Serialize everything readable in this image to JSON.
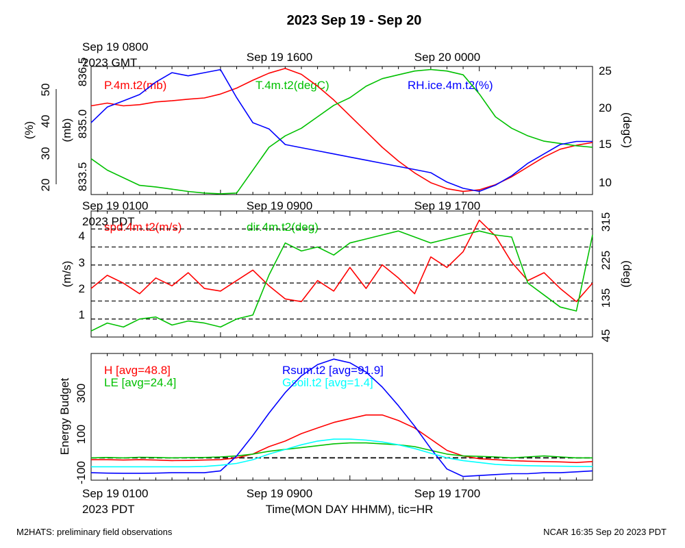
{
  "figure": {
    "title": "2023 Sep 19 - Sep 20",
    "footer_left": "M2HATS: preliminary field observations",
    "footer_right": "NCAR 16:35 Sep 20 2023 PDT",
    "xlabel": "Time(MON DAY HHMM), tic=HR",
    "gmt_ticks": [
      "Sep 19 0800",
      "Sep 19 1600",
      "Sep 20 0000"
    ],
    "gmt_zone": "2023 GMT",
    "pdt_ticks": [
      "Sep 19 0100",
      "Sep 19 0900",
      "Sep 19 1700"
    ],
    "pdt_zone": "2023 PDT"
  },
  "colors": {
    "red": "#ff0000",
    "green": "#00c000",
    "blue": "#0000ff",
    "cyan": "#00ffff",
    "black": "#000000"
  },
  "chart_data": [
    {
      "type": "line",
      "panel": "top",
      "x_axis": "hours since Sep 19 0100 PDT",
      "xlim": [
        0,
        31
      ],
      "axes": [
        {
          "id": "pct",
          "label": "(%)",
          "ticks": [
            "20",
            "30",
            "40",
            "50"
          ],
          "ylim": [
            17,
            58
          ]
        },
        {
          "id": "mb",
          "label": "(mb)",
          "ticks": [
            "833.5",
            "835.0",
            "836.5"
          ],
          "ylim": [
            833.3,
            836.55
          ]
        },
        {
          "id": "degC",
          "label": "(degC)",
          "ticks": [
            "10",
            "15",
            "20",
            "25"
          ],
          "ylim": [
            8.8,
            25.6
          ]
        }
      ],
      "series": [
        {
          "name": "P.4m.t2(mb)",
          "color": "red",
          "axis": "mb",
          "x": [
            0,
            1,
            2,
            3,
            4,
            5,
            6,
            7,
            8,
            9,
            10,
            11,
            12,
            13,
            14,
            15,
            16,
            17,
            18,
            19,
            20,
            21,
            22,
            23,
            24,
            25,
            26,
            27,
            28,
            29,
            30,
            31
          ],
          "y": [
            835.55,
            835.62,
            835.55,
            835.58,
            835.65,
            835.68,
            835.72,
            835.75,
            835.85,
            836.0,
            836.2,
            836.38,
            836.5,
            836.35,
            836.05,
            835.7,
            835.3,
            834.9,
            834.5,
            834.15,
            833.85,
            833.6,
            833.45,
            833.38,
            833.42,
            833.55,
            833.75,
            834.0,
            834.25,
            834.45,
            834.55,
            834.62
          ]
        },
        {
          "name": "T.4m.t2(degC)",
          "color": "green",
          "axis": "degC",
          "x": [
            0,
            1,
            2,
            3,
            4,
            5,
            6,
            7,
            8,
            9,
            10,
            11,
            12,
            13,
            14,
            15,
            16,
            17,
            18,
            19,
            20,
            21,
            22,
            23,
            24,
            25,
            26,
            27,
            28,
            29,
            30,
            31
          ],
          "y": [
            13.5,
            12.0,
            11.0,
            10.0,
            9.8,
            9.5,
            9.2,
            9.0,
            8.9,
            9.0,
            12.0,
            15.0,
            16.5,
            17.5,
            19.0,
            20.5,
            21.5,
            23.0,
            24.0,
            24.5,
            25.0,
            25.2,
            25.0,
            24.5,
            22.0,
            19.0,
            17.5,
            16.5,
            15.8,
            15.5,
            15.2,
            15.0
          ]
        },
        {
          "name": "RH.ice.4m.t2(%)",
          "color": "blue",
          "axis": "pct",
          "x": [
            0,
            1,
            2,
            3,
            4,
            5,
            6,
            7,
            8,
            9,
            10,
            11,
            12,
            13,
            14,
            15,
            16,
            17,
            18,
            19,
            20,
            21,
            22,
            23,
            24,
            25,
            26,
            27,
            28,
            29,
            30,
            31
          ],
          "y": [
            40,
            45,
            47,
            49,
            53,
            56,
            55,
            56,
            57,
            48,
            40,
            38,
            33,
            32,
            31,
            30,
            29,
            28,
            27,
            26,
            25,
            24,
            21,
            19,
            18,
            20,
            23,
            27,
            30,
            33,
            34,
            34
          ]
        }
      ]
    },
    {
      "type": "line",
      "panel": "middle",
      "x_axis": "hours since Sep 19 0100 PDT",
      "xlim": [
        0,
        31
      ],
      "axes": [
        {
          "id": "ms",
          "label": "(m/s)",
          "ticks": [
            "1",
            "2",
            "3",
            "4"
          ],
          "ylim": [
            0.15,
            4.95
          ]
        },
        {
          "id": "deg",
          "label": "(deg)",
          "ticks": [
            "45",
            "135",
            "225",
            "315"
          ],
          "ylim": [
            45,
            360
          ]
        }
      ],
      "reference_lines_deg": [
        45,
        90,
        135,
        180,
        225,
        270,
        315,
        360
      ],
      "series": [
        {
          "name": "spd.4m.t2(m/s)",
          "color": "red",
          "axis": "ms",
          "x": [
            0,
            1,
            2,
            3,
            4,
            5,
            6,
            7,
            8,
            9,
            10,
            11,
            12,
            13,
            14,
            15,
            16,
            17,
            18,
            19,
            20,
            21,
            22,
            23,
            24,
            25,
            26,
            27,
            28,
            29,
            30,
            31
          ],
          "y": [
            2.0,
            2.5,
            2.2,
            1.8,
            2.4,
            2.1,
            2.6,
            2.0,
            1.9,
            2.3,
            2.7,
            2.1,
            1.6,
            1.5,
            2.3,
            1.9,
            2.8,
            2.0,
            2.9,
            2.4,
            1.8,
            3.2,
            2.8,
            3.4,
            4.6,
            4.0,
            3.0,
            2.3,
            2.6,
            2.0,
            1.5,
            2.2
          ]
        },
        {
          "name": "dir.4m.t2(deg)",
          "color": "green",
          "axis": "deg",
          "x": [
            0,
            1,
            2,
            3,
            4,
            5,
            6,
            7,
            8,
            9,
            10,
            11,
            12,
            13,
            14,
            15,
            16,
            17,
            18,
            19,
            20,
            21,
            22,
            23,
            24,
            25,
            26,
            27,
            28,
            29,
            30,
            31
          ],
          "y": [
            60,
            80,
            70,
            90,
            95,
            75,
            85,
            80,
            70,
            90,
            100,
            200,
            280,
            260,
            270,
            250,
            280,
            290,
            300,
            310,
            295,
            280,
            290,
            300,
            310,
            300,
            295,
            180,
            150,
            120,
            110,
            300
          ]
        }
      ]
    },
    {
      "type": "line",
      "panel": "bottom",
      "x_axis": "hours since Sep 19 0100 PDT",
      "xlim": [
        0,
        31
      ],
      "ylabel": "Energy Budget",
      "ticks": [
        "-100",
        "100",
        "300"
      ],
      "ylim": [
        -120,
        560
      ],
      "zero_line": 0,
      "series": [
        {
          "name": "H [avg=48.8]",
          "color": "red",
          "x": [
            0,
            1,
            2,
            3,
            4,
            5,
            6,
            7,
            8,
            9,
            10,
            11,
            12,
            13,
            14,
            15,
            16,
            17,
            18,
            19,
            20,
            21,
            22,
            23,
            24,
            25,
            26,
            27,
            28,
            29,
            30,
            31
          ],
          "y": [
            -10,
            -10,
            -12,
            -10,
            -12,
            -15,
            -14,
            -12,
            -10,
            0,
            20,
            60,
            90,
            130,
            160,
            190,
            210,
            230,
            230,
            200,
            160,
            100,
            40,
            10,
            -5,
            -10,
            -15,
            -18,
            -20,
            -22,
            -25,
            -20
          ]
        },
        {
          "name": "LE [avg=24.4]",
          "color": "green",
          "x": [
            0,
            1,
            2,
            3,
            4,
            5,
            6,
            7,
            8,
            9,
            10,
            11,
            12,
            13,
            14,
            15,
            16,
            17,
            18,
            19,
            20,
            21,
            22,
            23,
            24,
            25,
            26,
            27,
            28,
            29,
            30,
            31
          ],
          "y": [
            0,
            2,
            0,
            3,
            2,
            0,
            1,
            2,
            5,
            10,
            20,
            35,
            45,
            55,
            65,
            75,
            80,
            80,
            75,
            70,
            60,
            40,
            20,
            10,
            8,
            5,
            0,
            5,
            10,
            5,
            0,
            0
          ]
        },
        {
          "name": "Rsum.t2 [avg=91.9]",
          "color": "blue",
          "x": [
            0,
            1,
            2,
            3,
            4,
            5,
            6,
            7,
            8,
            9,
            10,
            11,
            12,
            13,
            14,
            15,
            16,
            17,
            18,
            19,
            20,
            21,
            22,
            23,
            24,
            25,
            26,
            27,
            28,
            29,
            30,
            31
          ],
          "y": [
            -80,
            -82,
            -83,
            -83,
            -82,
            -80,
            -80,
            -80,
            -70,
            10,
            120,
            240,
            350,
            440,
            500,
            530,
            510,
            460,
            380,
            280,
            170,
            50,
            -60,
            -100,
            -95,
            -90,
            -85,
            -85,
            -80,
            -80,
            -75,
            -70
          ]
        },
        {
          "name": "Gsoil.t2 [avg=1.4]",
          "color": "cyan",
          "x": [
            0,
            1,
            2,
            3,
            4,
            5,
            6,
            7,
            8,
            9,
            10,
            11,
            12,
            13,
            14,
            15,
            16,
            17,
            18,
            19,
            20,
            21,
            22,
            23,
            24,
            25,
            26,
            27,
            28,
            29,
            30,
            31
          ],
          "y": [
            -48,
            -48,
            -48,
            -48,
            -48,
            -48,
            -48,
            -46,
            -40,
            -30,
            -10,
            20,
            45,
            70,
            90,
            100,
            100,
            95,
            85,
            70,
            50,
            25,
            0,
            -15,
            -25,
            -35,
            -40,
            -42,
            -44,
            -45,
            -46,
            -47
          ]
        }
      ]
    }
  ]
}
